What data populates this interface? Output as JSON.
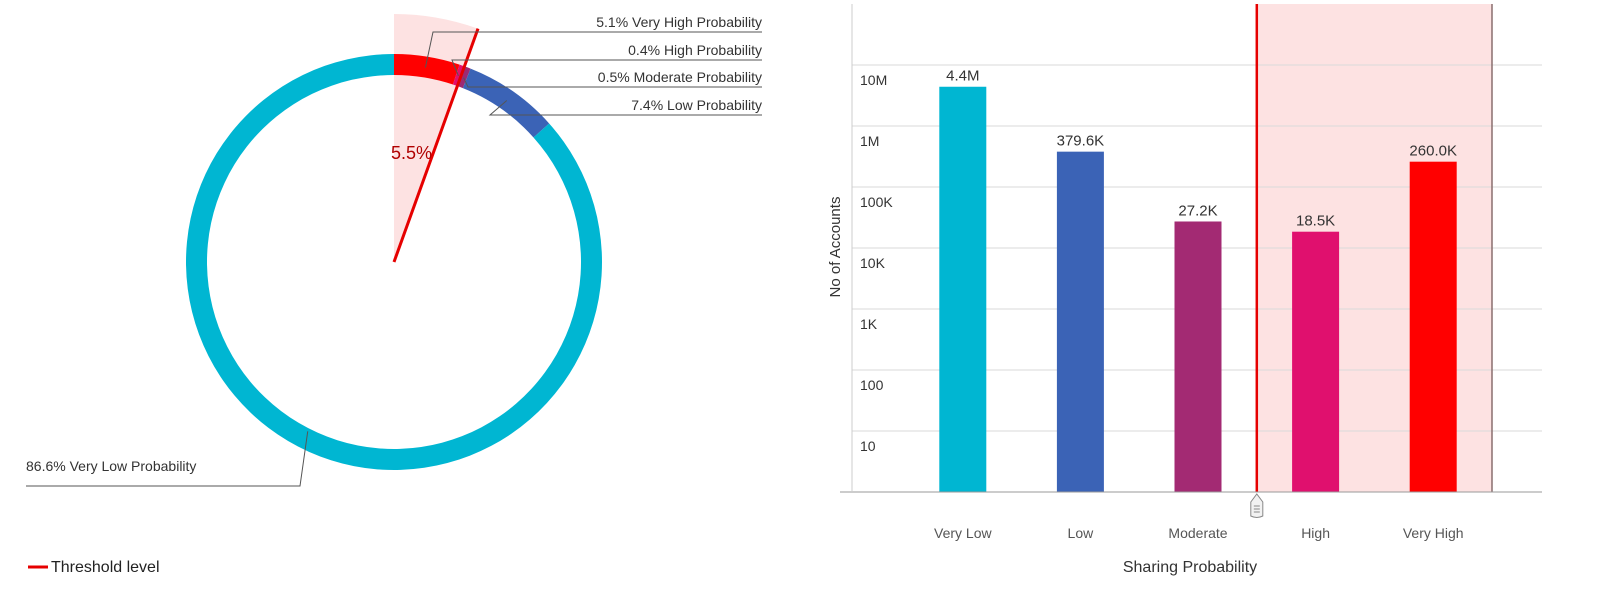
{
  "chart_data": [
    {
      "type": "pie",
      "style": "donut",
      "slices": [
        {
          "label": "5.1% Very High Probability",
          "value": 5.1,
          "color": "#ff0000"
        },
        {
          "label": "0.4% High Probability",
          "value": 0.4,
          "color": "#e0106e"
        },
        {
          "label": "0.5% Moderate Probability",
          "value": 0.5,
          "color": "#9c2a73"
        },
        {
          "label": "7.4% Low Probability",
          "value": 7.4,
          "color": "#3b63b6"
        },
        {
          "label": "86.6% Very Low Probability",
          "value": 86.6,
          "color": "#00b6d2"
        }
      ],
      "threshold": {
        "value_text": "5.5%",
        "value": 5.5,
        "color": "#e60000"
      },
      "highlight_color": "#fde2e2"
    },
    {
      "type": "bar",
      "scale": "log",
      "categories": [
        "Very Low",
        "Low",
        "Moderate",
        "High",
        "Very High"
      ],
      "values": [
        4400000,
        379600,
        27200,
        18500,
        260000
      ],
      "value_labels": [
        "4.4M",
        "379.6K",
        "27.2K",
        "18.5K",
        "260.0K"
      ],
      "colors": [
        "#00b6d2",
        "#3b63b6",
        "#a32a73",
        "#e0106e",
        "#ff0000"
      ],
      "yticks": [
        {
          "value": 10,
          "label": "10"
        },
        {
          "value": 100,
          "label": "100"
        },
        {
          "value": 1000,
          "label": "1K"
        },
        {
          "value": 10000,
          "label": "10K"
        },
        {
          "value": 100000,
          "label": "100K"
        },
        {
          "value": 1000000,
          "label": "1M"
        },
        {
          "value": 10000000,
          "label": "10M"
        }
      ],
      "ylim": [
        1,
        100000000
      ],
      "xlabel": "Sharing Probability",
      "ylabel": "No of Accounts",
      "grid": true,
      "threshold_between": [
        "Moderate",
        "High"
      ],
      "threshold_color": "#e60000",
      "highlight_color": "#fde2e2"
    }
  ],
  "legend": {
    "label": "Threshold level",
    "color": "#e60000"
  }
}
